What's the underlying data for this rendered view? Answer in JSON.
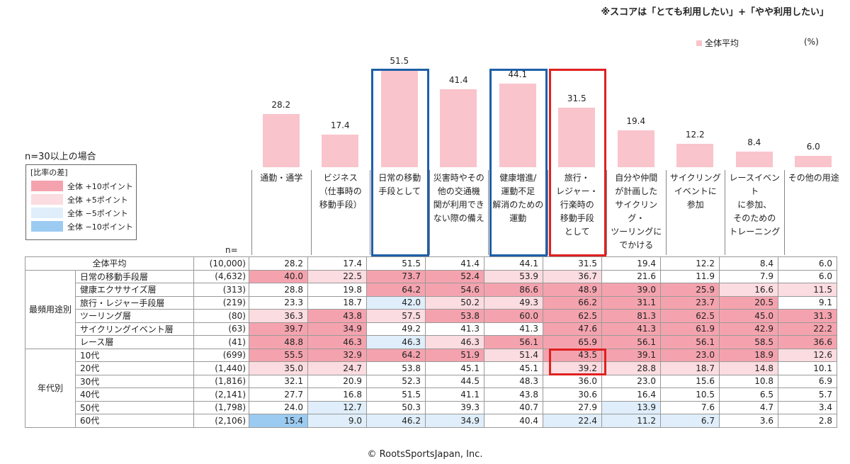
{
  "note": "※スコアは「とても利用したい」+「やや利用したい」",
  "legend_avg": "全体平均",
  "unit": "(%)",
  "condition": "n=30以上の場合",
  "diff_legend": {
    "title": "[比率の差]",
    "items": [
      {
        "label": "全体 +10ポイント",
        "color": "#f4a3ae"
      },
      {
        "label": "全体 +5ポイント",
        "color": "#fbdce0"
      },
      {
        "label": "全体 −5ポイント",
        "color": "#dfeefa"
      },
      {
        "label": "全体 −10ポイント",
        "color": "#9ccbf1"
      }
    ]
  },
  "n_label": "n=",
  "copyright": "© RootsSportsJapan, Inc.",
  "chart_data": {
    "type": "bar",
    "categories": [
      [
        "通勤・通学"
      ],
      [
        "ビジネス",
        "（仕事時の",
        "移動手段）"
      ],
      [
        "日常の移動",
        "手段として"
      ],
      [
        "災害時やその",
        "他の交通機",
        "関が利用でき",
        "ない際の備え"
      ],
      [
        "健康増進/",
        "運動不足",
        "解消のための",
        "運動"
      ],
      [
        "旅行・",
        "レジャー・",
        "行楽時の",
        "移動手段",
        "として"
      ],
      [
        "自分や仲間",
        "が計画した",
        "サイクリング・",
        "ツーリングに",
        "でかける"
      ],
      [
        "サイクリング",
        "イベントに",
        "参加"
      ],
      [
        "レースイベント",
        "に参加、",
        "そのための",
        "トレーニング"
      ],
      [
        "その他の用途"
      ]
    ],
    "values": [
      28.2,
      17.4,
      51.5,
      41.4,
      44.1,
      31.5,
      19.4,
      12.2,
      8.4,
      6.0
    ],
    "value_labels": [
      "28.2",
      "17.4",
      "51.5",
      "41.4",
      "44.1",
      "31.5",
      "19.4",
      "12.2",
      "8.4",
      "6.0"
    ],
    "ylim": [
      0,
      60
    ],
    "series": [
      {
        "name": "全体平均",
        "values": [
          28.2,
          17.4,
          51.5,
          41.4,
          44.1,
          31.5,
          19.4,
          12.2,
          8.4,
          6.0
        ]
      }
    ],
    "highlight_columns": [
      {
        "index": 2,
        "color": "#1f5fa8"
      },
      {
        "index": 4,
        "color": "#1f5fa8"
      },
      {
        "index": 5,
        "color": "#e02020"
      }
    ]
  },
  "table": {
    "total": {
      "label": "全体平均",
      "n": "(10,000)",
      "values": [
        "28.2",
        "17.4",
        "51.5",
        "41.4",
        "44.1",
        "31.5",
        "19.4",
        "12.2",
        "8.4",
        "6.0"
      ]
    },
    "groups": [
      {
        "name": "最頻用途別",
        "rows": [
          {
            "label": "日常の移動手段層",
            "n": "(4,632)",
            "values": [
              "40.0",
              "22.5",
              "73.7",
              "52.4",
              "53.9",
              "36.7",
              "21.6",
              "11.9",
              "7.9",
              "6.0"
            ],
            "shade": [
              "p10",
              "p5",
              "p10",
              "p10",
              "p5",
              "p5",
              "",
              "",
              "",
              ""
            ]
          },
          {
            "label": "健康エクササイズ層",
            "n": "(313)",
            "values": [
              "28.8",
              "19.8",
              "64.2",
              "54.6",
              "86.6",
              "48.9",
              "39.0",
              "25.9",
              "16.6",
              "11.5"
            ],
            "shade": [
              "",
              "",
              "p10",
              "p10",
              "p10",
              "p10",
              "p10",
              "p10",
              "p5",
              "p5"
            ]
          },
          {
            "label": "旅行・レジャー手段層",
            "n": "(219)",
            "values": [
              "23.3",
              "18.7",
              "42.0",
              "50.2",
              "49.3",
              "66.2",
              "31.1",
              "23.7",
              "20.5",
              "9.1"
            ],
            "shade": [
              "",
              "",
              "m5",
              "p5",
              "p5",
              "p10",
              "p10",
              "p10",
              "p10",
              ""
            ]
          },
          {
            "label": "ツーリング層",
            "n": "(80)",
            "values": [
              "36.3",
              "43.8",
              "57.5",
              "53.8",
              "60.0",
              "62.5",
              "81.3",
              "62.5",
              "45.0",
              "31.3"
            ],
            "shade": [
              "p5",
              "p10",
              "p5",
              "p10",
              "p10",
              "p10",
              "p10",
              "p10",
              "p10",
              "p10"
            ]
          },
          {
            "label": "サイクリングイベント層",
            "n": "(63)",
            "values": [
              "39.7",
              "34.9",
              "49.2",
              "41.3",
              "41.3",
              "47.6",
              "41.3",
              "61.9",
              "42.9",
              "22.2"
            ],
            "shade": [
              "p10",
              "p10",
              "",
              "",
              "",
              "p10",
              "p10",
              "p10",
              "p10",
              "p10"
            ]
          },
          {
            "label": "レース層",
            "n": "(41)",
            "values": [
              "48.8",
              "46.3",
              "46.3",
              "46.3",
              "56.1",
              "65.9",
              "56.1",
              "56.1",
              "58.5",
              "36.6"
            ],
            "shade": [
              "p10",
              "p10",
              "m5",
              "p5",
              "p10",
              "p10",
              "p10",
              "p10",
              "p10",
              "p10"
            ]
          }
        ]
      },
      {
        "name": "年代別",
        "rows": [
          {
            "label": "10代",
            "n": "(699)",
            "values": [
              "55.5",
              "32.9",
              "64.2",
              "51.9",
              "51.4",
              "43.5",
              "39.1",
              "23.0",
              "18.9",
              "12.6"
            ],
            "shade": [
              "p10",
              "p10",
              "p10",
              "p10",
              "p5",
              "p10",
              "p10",
              "p10",
              "p10",
              "p5"
            ]
          },
          {
            "label": "20代",
            "n": "(1,440)",
            "values": [
              "35.0",
              "24.7",
              "53.8",
              "45.1",
              "45.1",
              "39.2",
              "28.8",
              "18.7",
              "14.8",
              "10.1"
            ],
            "shade": [
              "p5",
              "p5",
              "",
              "",
              "",
              "p5",
              "p5",
              "p5",
              "p5",
              ""
            ]
          },
          {
            "label": "30代",
            "n": "(1,816)",
            "values": [
              "32.1",
              "20.9",
              "52.3",
              "44.5",
              "48.3",
              "36.0",
              "23.0",
              "15.6",
              "10.8",
              "6.9"
            ],
            "shade": [
              "",
              "",
              "",
              "",
              "",
              "",
              "",
              "",
              "",
              ""
            ]
          },
          {
            "label": "40代",
            "n": "(2,141)",
            "values": [
              "27.7",
              "16.8",
              "51.5",
              "41.1",
              "43.8",
              "30.6",
              "16.4",
              "10.5",
              "6.5",
              "5.7"
            ],
            "shade": [
              "",
              "",
              "",
              "",
              "",
              "",
              "",
              "",
              "",
              ""
            ]
          },
          {
            "label": "50代",
            "n": "(1,798)",
            "values": [
              "24.0",
              "12.7",
              "50.3",
              "39.3",
              "40.7",
              "27.9",
              "13.9",
              "7.6",
              "4.7",
              "3.4"
            ],
            "shade": [
              "",
              "m5",
              "",
              "",
              "",
              "",
              "m5",
              "",
              "",
              ""
            ]
          },
          {
            "label": "60代",
            "n": "(2,106)",
            "values": [
              "15.4",
              "9.0",
              "46.2",
              "34.9",
              "40.4",
              "22.4",
              "11.2",
              "6.7",
              "3.6",
              "2.8"
            ],
            "shade": [
              "m10",
              "m5",
              "m5",
              "m5",
              "",
              "m5",
              "m5",
              "m5",
              "",
              ""
            ]
          }
        ]
      }
    ],
    "shade_colors": {
      "p10": "#f4a3ae",
      "p5": "#fbdce0",
      "m5": "#dfeefa",
      "m10": "#9ccbf1"
    },
    "red_highlight_rows": [
      "10代",
      "20代"
    ]
  }
}
